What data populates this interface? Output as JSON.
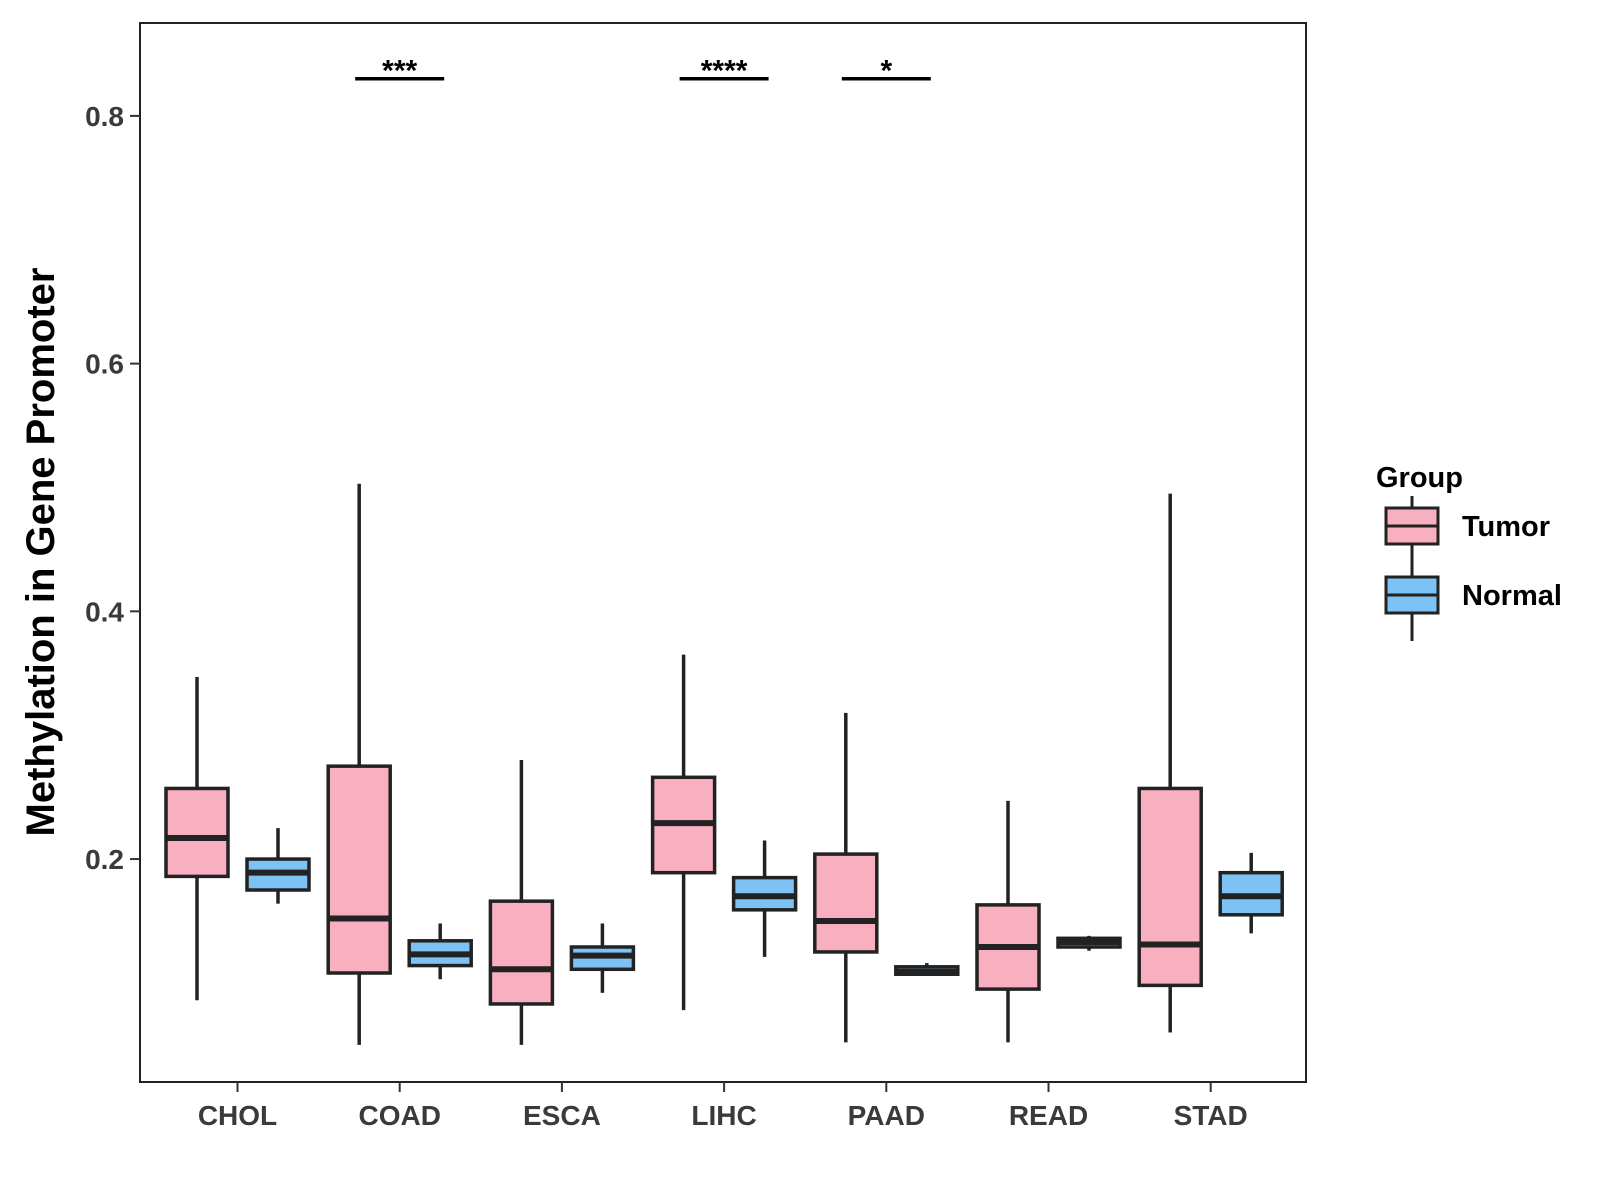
{
  "chart_data": {
    "type": "boxplot",
    "title": "",
    "xlabel": "",
    "ylabel": "Methylation in Gene Promoter",
    "ylim": [
      0.02,
      0.875
    ],
    "yticks": [
      0.2,
      0.4,
      0.6,
      0.8
    ],
    "ytick_labels": [
      "0.2",
      "0.4",
      "0.6",
      "0.8"
    ],
    "grid": false,
    "categories": [
      "CHOL",
      "COAD",
      "ESCA",
      "LIHC",
      "PAAD",
      "READ",
      "STAD"
    ],
    "series": [
      {
        "name": "Tumor",
        "color": "#F8AFC0",
        "boxes": [
          {
            "min": 0.086,
            "q1": 0.186,
            "median": 0.217,
            "q3": 0.257,
            "max": 0.347
          },
          {
            "min": 0.05,
            "q1": 0.108,
            "median": 0.152,
            "q3": 0.275,
            "max": 0.503
          },
          {
            "min": 0.05,
            "q1": 0.083,
            "median": 0.111,
            "q3": 0.166,
            "max": 0.28
          },
          {
            "min": 0.078,
            "q1": 0.189,
            "median": 0.229,
            "q3": 0.266,
            "max": 0.365
          },
          {
            "min": 0.052,
            "q1": 0.125,
            "median": 0.15,
            "q3": 0.204,
            "max": 0.318
          },
          {
            "min": 0.052,
            "q1": 0.095,
            "median": 0.129,
            "q3": 0.163,
            "max": 0.247
          },
          {
            "min": 0.06,
            "q1": 0.098,
            "median": 0.131,
            "q3": 0.257,
            "max": 0.495
          }
        ]
      },
      {
        "name": "Normal",
        "color": "#7CC2F4",
        "boxes": [
          {
            "min": 0.164,
            "q1": 0.175,
            "median": 0.189,
            "q3": 0.2,
            "max": 0.225
          },
          {
            "min": 0.103,
            "q1": 0.114,
            "median": 0.123,
            "q3": 0.134,
            "max": 0.148
          },
          {
            "min": 0.092,
            "q1": 0.111,
            "median": 0.122,
            "q3": 0.129,
            "max": 0.148
          },
          {
            "min": 0.121,
            "q1": 0.159,
            "median": 0.17,
            "q3": 0.185,
            "max": 0.215
          },
          {
            "min": 0.106,
            "q1": 0.107,
            "median": 0.109,
            "q3": 0.113,
            "max": 0.116
          },
          {
            "min": 0.126,
            "q1": 0.129,
            "median": 0.133,
            "q3": 0.136,
            "max": 0.138
          },
          {
            "min": 0.14,
            "q1": 0.155,
            "median": 0.17,
            "q3": 0.189,
            "max": 0.205
          }
        ]
      }
    ],
    "significance": [
      {
        "category": "COAD",
        "label": "***",
        "y": 0.83
      },
      {
        "category": "LIHC",
        "label": "****",
        "y": 0.83
      },
      {
        "category": "PAAD",
        "label": "*",
        "y": 0.83
      }
    ],
    "legend": {
      "title": "Group",
      "position": "right",
      "entries": [
        "Tumor",
        "Normal"
      ]
    }
  }
}
